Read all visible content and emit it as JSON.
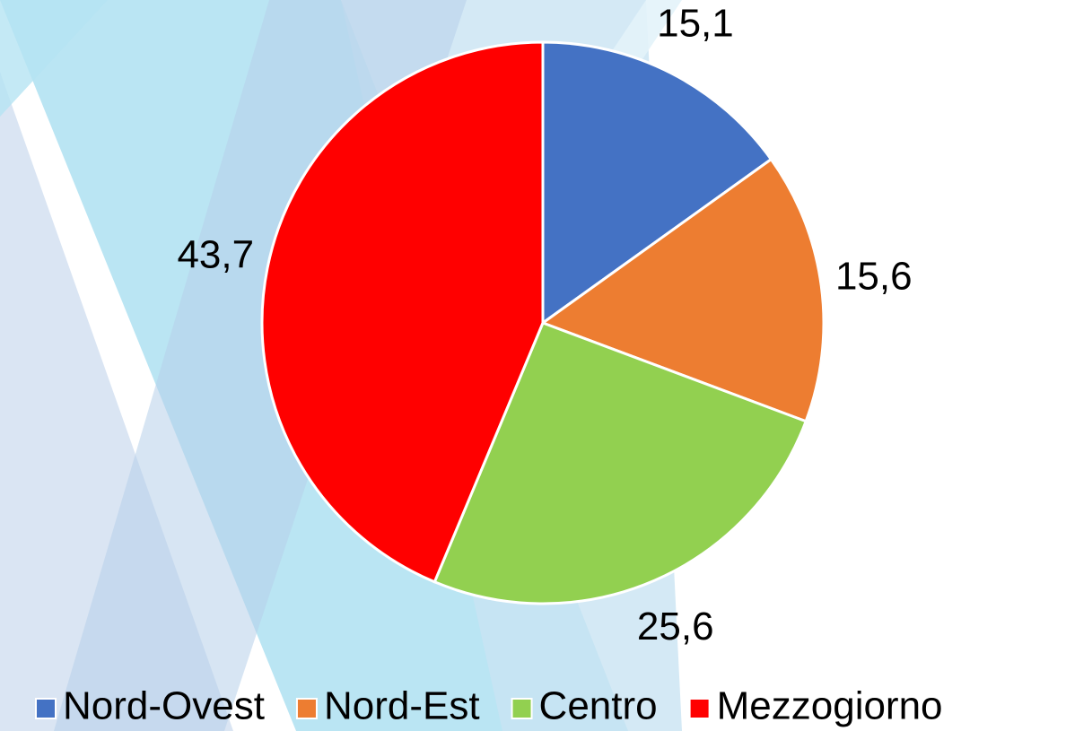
{
  "chart_data": {
    "type": "pie",
    "categories": [
      "Nord-Ovest",
      "Nord-Est",
      "Centro",
      "Mezzogiorno"
    ],
    "values": [
      15.1,
      15.6,
      25.6,
      43.7
    ],
    "value_labels": [
      "15,1",
      "15,6",
      "25,6",
      "43,7"
    ],
    "colors": [
      "#4472c4",
      "#ed7d31",
      "#92d050",
      "#ff0000"
    ],
    "legend": "bottom"
  }
}
